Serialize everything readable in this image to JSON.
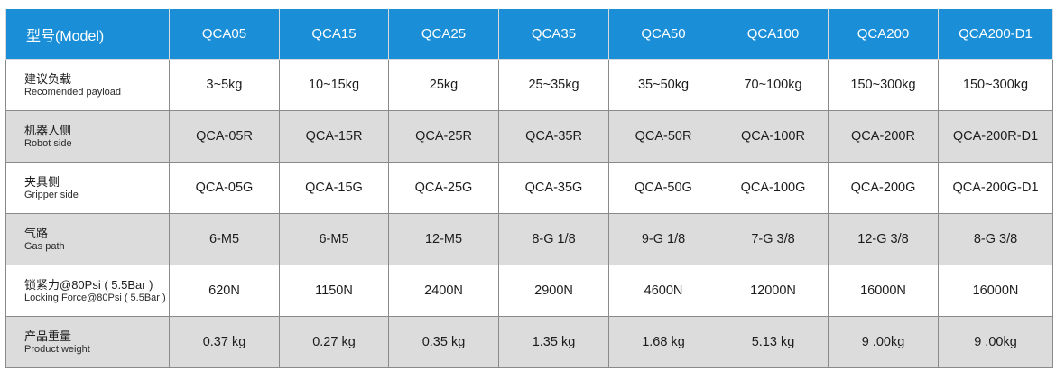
{
  "table": {
    "header": {
      "label": "型号(Model)",
      "models": [
        "QCA05",
        "QCA15",
        "QCA25",
        "QCA35",
        "QCA50",
        "QCA100",
        "QCA200",
        "QCA200-D1"
      ]
    },
    "rows": [
      {
        "label_zh": "建议负载",
        "label_en": "Recomended payload",
        "values": [
          "3~5kg",
          "10~15kg",
          "25kg",
          "25~35kg",
          "35~50kg",
          "70~100kg",
          "150~300kg",
          "150~300kg"
        ]
      },
      {
        "label_zh": "机器人侧",
        "label_en": "Robot side",
        "values": [
          "QCA-05R",
          "QCA-15R",
          "QCA-25R",
          "QCA-35R",
          "QCA-50R",
          "QCA-100R",
          "QCA-200R",
          "QCA-200R-D1"
        ]
      },
      {
        "label_zh": "夹具侧",
        "label_en": "Gripper side",
        "values": [
          "QCA-05G",
          "QCA-15G",
          "QCA-25G",
          "QCA-35G",
          "QCA-50G",
          "QCA-100G",
          "QCA-200G",
          "QCA-200G-D1"
        ]
      },
      {
        "label_zh": "气路",
        "label_en": "Gas path",
        "values": [
          "6-M5",
          "6-M5",
          "12-M5",
          "8-G 1/8",
          "9-G 1/8",
          "7-G 3/8",
          "12-G 3/8",
          "8-G 3/8"
        ]
      },
      {
        "label_zh": "锁紧力@80Psi ( 5.5Bar )",
        "label_en": "Locking Force@80Psi ( 5.5Bar )",
        "values": [
          "620N",
          "1150N",
          "2400N",
          "2900N",
          "4600N",
          "12000N",
          "16000N",
          "16000N"
        ]
      },
      {
        "label_zh": "产品重量",
        "label_en": "Product weight",
        "values": [
          "0.37 kg",
          "0.27 kg",
          "0.35 kg",
          "1.35 kg",
          "1.68 kg",
          "5.13 kg",
          "9 .00kg",
          "9 .00kg"
        ]
      }
    ]
  },
  "colors": {
    "header_bg": "#1a8fd8",
    "row_alt_bg": "#dcdcdc"
  }
}
